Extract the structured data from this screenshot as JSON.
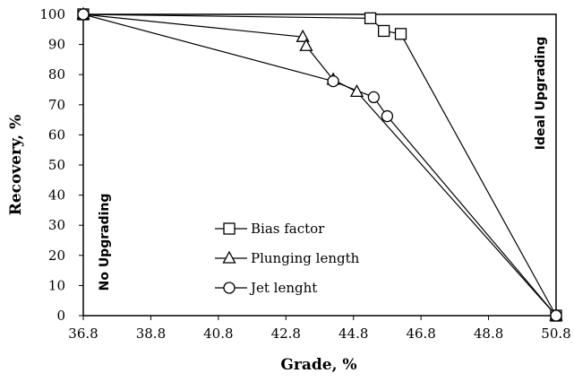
{
  "chart_data": {
    "type": "line",
    "xlabel": "Grade, %",
    "ylabel": "Recovery, %",
    "xlim": [
      36.8,
      50.8
    ],
    "ylim": [
      0,
      100
    ],
    "xticks": [
      "36.8",
      "38.8",
      "40.8",
      "42.8",
      "44.8",
      "46.8",
      "48.8",
      "50.8"
    ],
    "yticks": [
      "0",
      "10",
      "20",
      "30",
      "40",
      "50",
      "60",
      "70",
      "80",
      "90",
      "100"
    ],
    "grid": false,
    "legend_position": "bottom-left",
    "annotations": {
      "left": "No Upgrading",
      "right": "Ideal Upgrading"
    },
    "series": [
      {
        "name": "Bias factor",
        "marker": "square",
        "x": [
          36.8,
          45.3,
          45.7,
          46.2,
          50.8
        ],
        "y": [
          100,
          98.7,
          94.5,
          93.5,
          0
        ]
      },
      {
        "name": "Plunging length",
        "marker": "triangle",
        "x": [
          36.8,
          43.3,
          43.4,
          44.2,
          44.9,
          50.8
        ],
        "y": [
          100,
          92.5,
          89.5,
          78.3,
          74.3,
          0
        ]
      },
      {
        "name": "Jet lenght",
        "marker": "circle",
        "x": [
          36.8,
          44.2,
          45.4,
          45.8,
          50.8
        ],
        "y": [
          100,
          77.8,
          72.5,
          66.2,
          0
        ]
      }
    ]
  }
}
